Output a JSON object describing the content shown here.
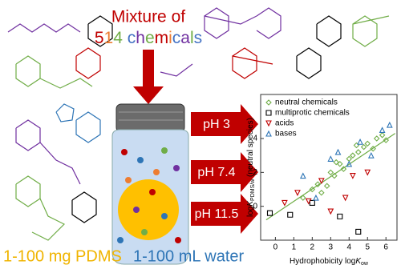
{
  "header": {
    "line1": "Mixture of",
    "line2": "514 chemicals",
    "line2_colors": [
      "#c00000",
      "#ed7d31",
      "#70ad47",
      "#ffffff",
      "#4472c4",
      "#7030a0",
      "#70ad47",
      "#c00000",
      "#ed7d31",
      "#4472c4",
      "#7030a0",
      "#70ad47",
      "#4472c4"
    ]
  },
  "ph_arrows": [
    "pH 3",
    "pH 7.4",
    "pH 11.5"
  ],
  "footer": {
    "pdms": "1-100 mg PDMS",
    "water": "1-100 mL water"
  },
  "chart_data": {
    "type": "scatter",
    "x_label": {
      "main": "Hydrophobicity log",
      "k": "K",
      "sub": "ow"
    },
    "y_label": {
      "main": "log",
      "k": "K",
      "sub": "PDMS/w",
      "rest": " (neutral species)"
    },
    "xlim": [
      -0.8,
      6.6
    ],
    "ylim": [
      -2,
      6.6
    ],
    "xticks": [
      0,
      1,
      2,
      3,
      4,
      5,
      6
    ],
    "yticks": [
      0,
      2,
      4
    ],
    "fit_line": {
      "color": "#70ad47",
      "x": [
        -0.5,
        6.5
      ],
      "y": [
        -0.8,
        4.3
      ]
    },
    "series": [
      {
        "name": "neutral chemicals",
        "color": "#70ad47",
        "marker": "diamond",
        "x": [
          1.5,
          2,
          2.3,
          2.8,
          3,
          3.2,
          3.5,
          3.7,
          4,
          4.2,
          4.5,
          4.8,
          5,
          5.3,
          5.5,
          5.8,
          6,
          2.5,
          3.3,
          4.4
        ],
        "values": [
          0.5,
          1,
          1.3,
          1.2,
          2,
          1.8,
          2.5,
          2.2,
          2.8,
          3,
          3.2,
          3.5,
          3.7,
          3.4,
          4,
          4.2,
          3.9,
          0.8,
          2.6,
          3.6
        ]
      },
      {
        "name": "multiprotic chemicals",
        "color": "#000000",
        "marker": "square",
        "x": [
          0.8,
          2,
          3.5,
          4.5,
          -0.3
        ],
        "values": [
          -0.5,
          0.2,
          -0.6,
          -1.5,
          -0.4
        ]
      },
      {
        "name": "acids",
        "color": "#c00000",
        "marker": "triangle-down",
        "x": [
          1.2,
          1.8,
          2.5,
          3,
          3.8,
          4.2,
          5,
          0.5
        ],
        "values": [
          0.8,
          0.3,
          1.5,
          -0.3,
          0.5,
          1.8,
          2,
          0.2
        ]
      },
      {
        "name": "bases",
        "color": "#2e75b6",
        "marker": "triangle-up",
        "x": [
          1.5,
          2.2,
          3,
          3.4,
          4,
          4.6,
          5.2,
          5.8,
          6.2
        ],
        "values": [
          1.8,
          0.5,
          2.8,
          3.2,
          2.5,
          3.8,
          3,
          4.5,
          4.8
        ]
      }
    ]
  }
}
